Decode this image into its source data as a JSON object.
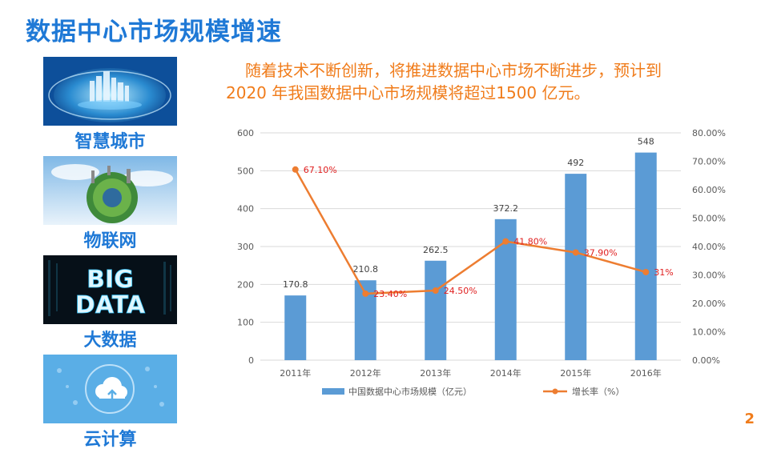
{
  "title": "数据中心市场规模增速",
  "sidebar": {
    "items": [
      {
        "label": "智慧城市",
        "image": "smart-city-globe-image"
      },
      {
        "label": "物联网",
        "image": "iot-globe-image"
      },
      {
        "label": "大数据",
        "image": "big-data-image",
        "image_text": [
          "BIG",
          "DATA"
        ]
      },
      {
        "label": "云计算",
        "image": "cloud-computing-image"
      }
    ]
  },
  "intro": {
    "line1": "随着技术不断创新，将推进数据中心市场不断进步，预计到",
    "line2": "2020 年我国数据中心市场规模将超过1500 亿元。"
  },
  "page_number": "2",
  "colors": {
    "title": "#1f79d6",
    "accent": "#f07c1b",
    "bar": "#5b9bd5",
    "line": "#ed7d31",
    "point_label": "#e02020"
  },
  "chart_data": {
    "type": "bar",
    "categories": [
      "2011年",
      "2012年",
      "2013年",
      "2014年",
      "2015年",
      "2016年"
    ],
    "series": [
      {
        "name": "中国数据中心市场规模（亿元）",
        "type": "bar",
        "axis": "left",
        "values": [
          170.8,
          210.8,
          262.5,
          372.2,
          492,
          548
        ],
        "labels": [
          "170.8",
          "210.8",
          "262.5",
          "372.2",
          "492",
          "548"
        ]
      },
      {
        "name": "增长率（%）",
        "type": "line",
        "axis": "right",
        "values": [
          67.1,
          23.4,
          24.5,
          41.8,
          37.9,
          31
        ],
        "labels": [
          "67.10%",
          "23.40%",
          "24.50%",
          "41.80%",
          "37.90%",
          "31%"
        ]
      }
    ],
    "y_left": {
      "min": 0,
      "max": 600,
      "ticks": [
        "0",
        "100",
        "200",
        "300",
        "400",
        "500",
        "600"
      ]
    },
    "y_right": {
      "min": 0,
      "max": 80,
      "ticks": [
        "0.00%",
        "10.00%",
        "20.00%",
        "30.00%",
        "40.00%",
        "50.00%",
        "60.00%",
        "70.00%",
        "80.00%"
      ]
    },
    "grid": true,
    "legend": "bottom"
  }
}
